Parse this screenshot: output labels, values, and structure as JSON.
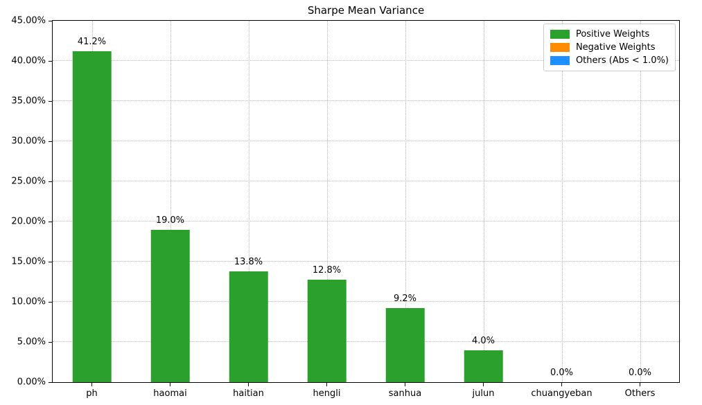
{
  "colors": {
    "positive": "#2ca02c",
    "negative": "#ff8c00",
    "others": "#1e90ff",
    "grid": "#b8b8b8",
    "axis": "#000000",
    "background": "#ffffff"
  },
  "legend": {
    "items": [
      {
        "label": "Positive Weights",
        "color": "#2ca02c",
        "swatch_name": "positive-weights-swatch"
      },
      {
        "label": "Negative Weights",
        "color": "#ff8c00",
        "swatch_name": "negative-weights-swatch"
      },
      {
        "label": "Others (Abs < 1.0%)",
        "color": "#1e90ff",
        "swatch_name": "others-swatch"
      }
    ]
  },
  "chart_data": {
    "type": "bar",
    "title": "Sharpe Mean Variance",
    "categories": [
      "ph",
      "haomai",
      "haitian",
      "hengli",
      "sanhua",
      "julun",
      "chuangyeban",
      "Others"
    ],
    "values": [
      41.2,
      19.0,
      13.8,
      12.8,
      9.2,
      4.0,
      0.0,
      0.0
    ],
    "bar_labels": [
      "41.2%",
      "19.0%",
      "13.8%",
      "12.8%",
      "9.2%",
      "4.0%",
      "0.0%",
      "0.0%"
    ],
    "bar_color": "#2ca02c",
    "xlabel": "",
    "ylabel": "",
    "ylim": [
      0,
      45
    ],
    "ytick_values": [
      0,
      5,
      10,
      15,
      20,
      25,
      30,
      35,
      40,
      45
    ],
    "ytick_labels": [
      "0.00%",
      "5.00%",
      "10.00%",
      "15.00%",
      "20.00%",
      "25.00%",
      "30.00%",
      "35.00%",
      "40.00%",
      "45.00%"
    ],
    "grid": true,
    "grid_style": "dotted",
    "legend_position": "upper right"
  }
}
